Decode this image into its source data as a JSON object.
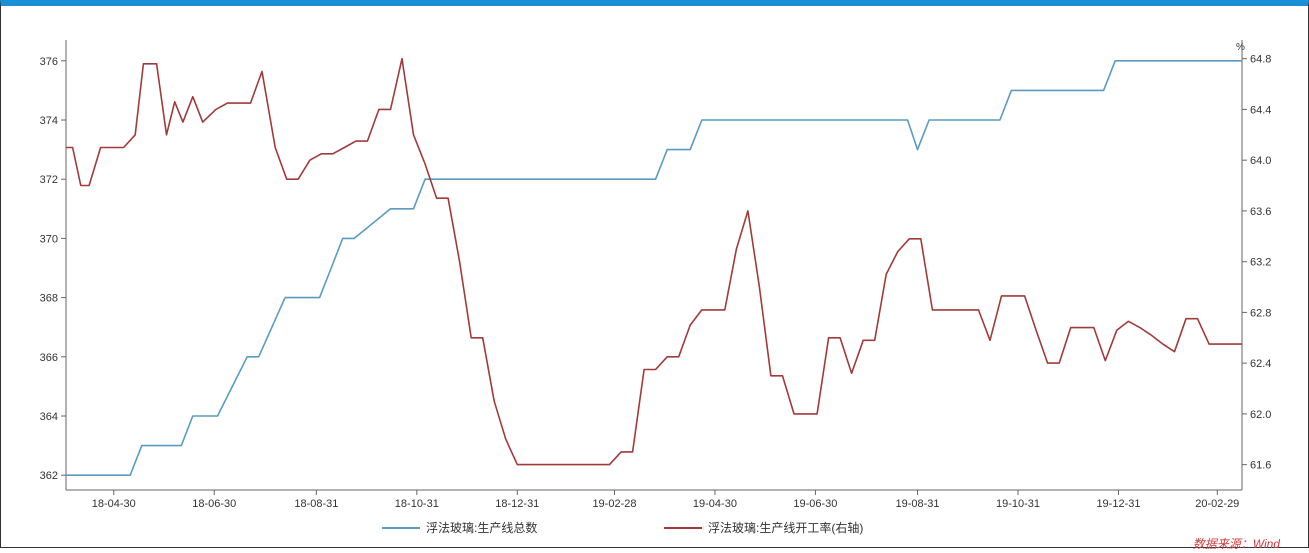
{
  "chart_data": {
    "type": "line",
    "y_unit_right": "%",
    "source": "数据来源：Wind",
    "legend": [
      {
        "name": "浮法玻璃:生产线总数",
        "color": "#5b9bc2",
        "axis": "left"
      },
      {
        "name": "浮法玻璃:生产线开工率(右轴)",
        "color": "#a23a3a",
        "axis": "right"
      }
    ],
    "x_range": [
      "2018-04-01",
      "2020-03-15"
    ],
    "x_ticks": [
      "18-04-30",
      "18-06-30",
      "18-08-31",
      "18-10-31",
      "18-12-31",
      "19-02-28",
      "19-04-30",
      "19-06-30",
      "19-08-31",
      "19-10-31",
      "19-12-31",
      "20-02-29"
    ],
    "y_left": {
      "min": 361.5,
      "max": 376.5,
      "ticks": [
        "362",
        "364",
        "366",
        "368",
        "370",
        "372",
        "374",
        "376"
      ]
    },
    "y_right": {
      "min": 61.4,
      "max": 64.9,
      "ticks": [
        "61.6",
        "62.0",
        "62.4",
        "62.8",
        "63.2",
        "63.6",
        "64.0",
        "64.4",
        "64.8"
      ]
    },
    "series": [
      {
        "name": "浮法玻璃:生产线总数",
        "axis": "left",
        "color": "#5b9bc2",
        "x": [
          "2018-04-01",
          "2018-05-10",
          "2018-05-17",
          "2018-06-10",
          "2018-06-17",
          "2018-06-25",
          "2018-07-02",
          "2018-07-20",
          "2018-07-27",
          "2018-08-12",
          "2018-08-19",
          "2018-09-02",
          "2018-09-09",
          "2018-09-16",
          "2018-09-23",
          "2018-10-15",
          "2018-10-22",
          "2018-10-29",
          "2018-11-05",
          "2019-03-25",
          "2019-04-01",
          "2019-04-15",
          "2019-04-22",
          "2019-04-29",
          "2019-08-25",
          "2019-08-31",
          "2019-09-07",
          "2019-10-20",
          "2019-10-27",
          "2019-12-22",
          "2019-12-29",
          "2020-03-15"
        ],
        "y": [
          362,
          362,
          363,
          363,
          364,
          364,
          364,
          366,
          366,
          368,
          368,
          368,
          369,
          370,
          370,
          371,
          371,
          371,
          372,
          372,
          373,
          373,
          374,
          374,
          374,
          373,
          374,
          374,
          375,
          375,
          376,
          376
        ]
      },
      {
        "name": "浮法玻璃:生产线开工率(右轴)",
        "axis": "right",
        "color": "#a23a3a",
        "x": [
          "2018-04-01",
          "2018-04-05",
          "2018-04-10",
          "2018-04-15",
          "2018-04-22",
          "2018-04-29",
          "2018-05-06",
          "2018-05-13",
          "2018-05-18",
          "2018-05-26",
          "2018-06-01",
          "2018-06-06",
          "2018-06-11",
          "2018-06-17",
          "2018-06-23",
          "2018-07-01",
          "2018-07-08",
          "2018-07-15",
          "2018-07-22",
          "2018-07-29",
          "2018-08-06",
          "2018-08-13",
          "2018-08-20",
          "2018-08-27",
          "2018-09-03",
          "2018-09-10",
          "2018-09-17",
          "2018-09-24",
          "2018-10-01",
          "2018-10-08",
          "2018-10-15",
          "2018-10-22",
          "2018-10-29",
          "2018-11-05",
          "2018-11-12",
          "2018-11-19",
          "2018-11-26",
          "2018-12-03",
          "2018-12-10",
          "2018-12-17",
          "2018-12-24",
          "2018-12-31",
          "2019-01-07",
          "2019-01-14",
          "2019-01-21",
          "2019-02-25",
          "2019-03-04",
          "2019-03-11",
          "2019-03-18",
          "2019-03-25",
          "2019-04-01",
          "2019-04-08",
          "2019-04-15",
          "2019-04-22",
          "2019-04-29",
          "2019-05-06",
          "2019-05-13",
          "2019-05-20",
          "2019-05-27",
          "2019-06-03",
          "2019-06-10",
          "2019-06-17",
          "2019-06-24",
          "2019-07-01",
          "2019-07-08",
          "2019-07-15",
          "2019-07-22",
          "2019-07-29",
          "2019-08-05",
          "2019-08-12",
          "2019-08-19",
          "2019-08-26",
          "2019-09-02",
          "2019-09-09",
          "2019-09-16",
          "2019-09-23",
          "2019-09-30",
          "2019-10-07",
          "2019-10-14",
          "2019-10-21",
          "2019-10-28",
          "2019-11-04",
          "2019-11-11",
          "2019-11-18",
          "2019-11-25",
          "2019-12-02",
          "2019-12-09",
          "2019-12-16",
          "2019-12-23",
          "2019-12-30",
          "2020-01-06",
          "2020-01-13",
          "2020-01-20",
          "2020-01-27",
          "2020-02-03",
          "2020-02-10",
          "2020-02-17",
          "2020-02-24",
          "2020-03-02",
          "2020-03-09",
          "2020-03-15"
        ],
        "y": [
          64.1,
          64.1,
          63.8,
          63.8,
          64.1,
          64.1,
          64.1,
          64.2,
          64.76,
          64.76,
          64.2,
          64.46,
          64.3,
          64.5,
          64.3,
          64.4,
          64.45,
          64.45,
          64.45,
          64.7,
          64.1,
          63.85,
          63.85,
          64.0,
          64.05,
          64.05,
          64.1,
          64.15,
          64.15,
          64.4,
          64.4,
          64.8,
          64.2,
          63.97,
          63.7,
          63.7,
          63.2,
          62.6,
          62.6,
          62.1,
          61.8,
          61.6,
          61.6,
          61.6,
          61.6,
          61.6,
          61.7,
          61.7,
          62.35,
          62.35,
          62.45,
          62.45,
          62.7,
          62.82,
          62.82,
          62.82,
          63.3,
          63.6,
          63.0,
          62.3,
          62.3,
          62.0,
          62.0,
          62.0,
          62.6,
          62.6,
          62.32,
          62.58,
          62.58,
          63.1,
          63.28,
          63.38,
          63.38,
          62.82,
          62.82,
          62.82,
          62.82,
          62.82,
          62.58,
          62.93,
          62.93,
          62.93,
          62.66,
          62.4,
          62.4,
          62.68,
          62.68,
          62.68,
          62.42,
          62.66,
          62.73,
          62.68,
          62.62,
          62.55,
          62.49,
          62.75,
          62.75,
          62.55,
          62.55,
          62.55,
          62.55
        ]
      }
    ]
  }
}
